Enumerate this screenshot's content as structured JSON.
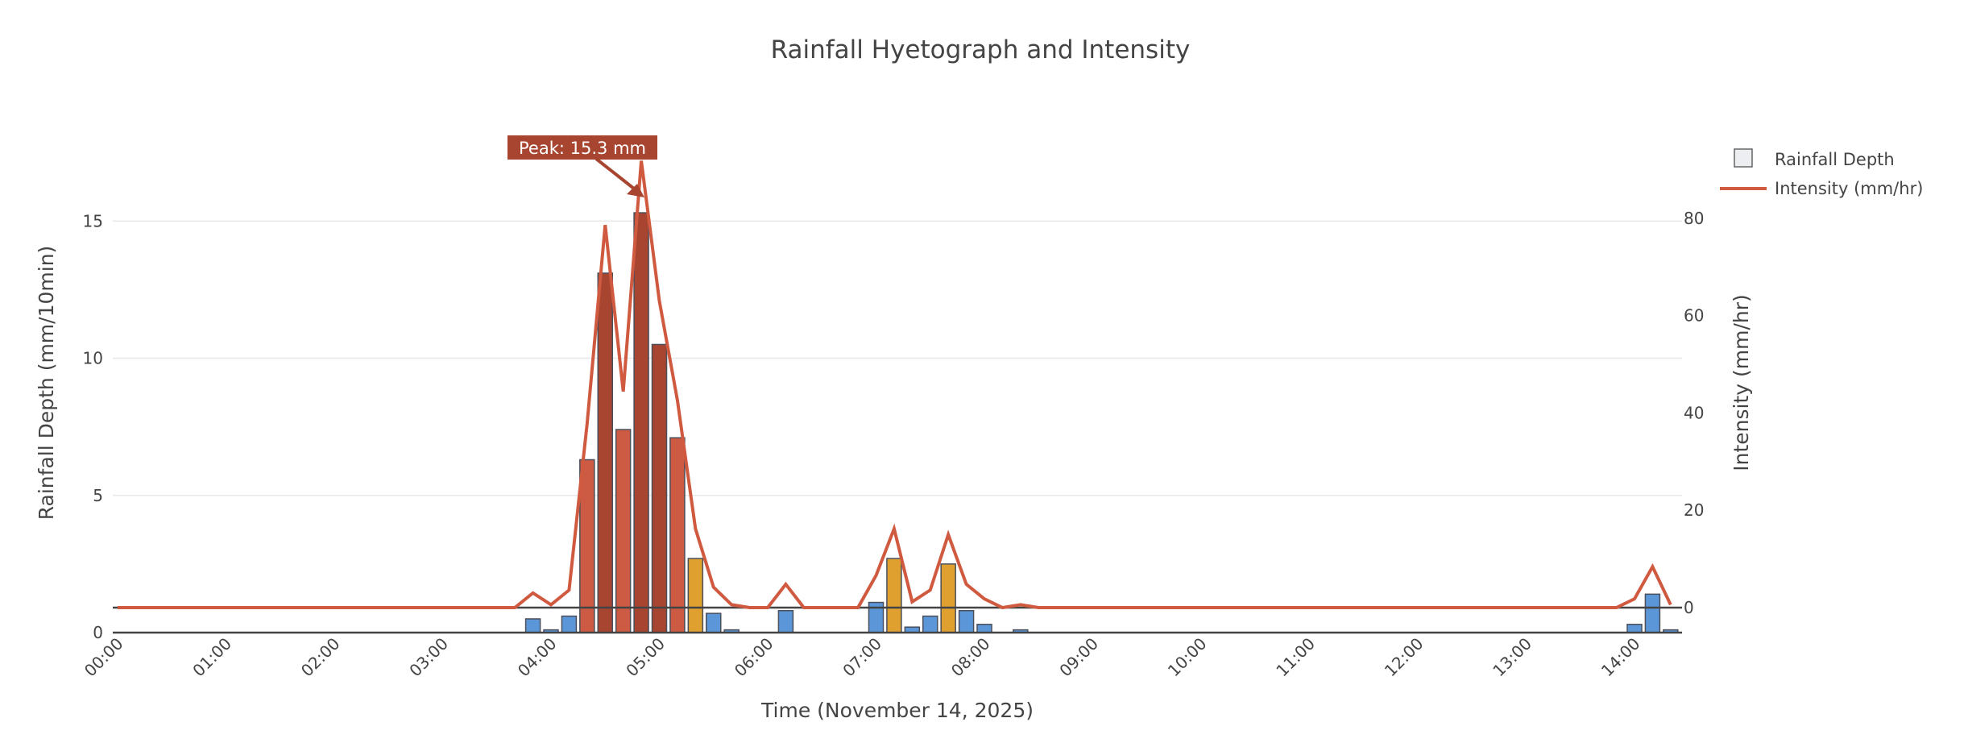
{
  "chart_data": {
    "type": "bar+line",
    "title": "Rainfall Hyetograph and Intensity",
    "xlabel": "Time (November 14, 2025)",
    "ylabel": "Rainfall Depth (mm/10min)",
    "y2label": "Intensity (mm/hr)",
    "x_interval_minutes": 10,
    "x_start": "00:00",
    "x_ticks": [
      "00:00",
      "01:00",
      "02:00",
      "03:00",
      "04:00",
      "05:00",
      "06:00",
      "07:00",
      "08:00",
      "09:00",
      "10:00",
      "11:00",
      "12:00",
      "13:00",
      "14:00"
    ],
    "y_ticks": [
      "0",
      "5",
      "10",
      "15"
    ],
    "y_tick_values": [
      0,
      5,
      10,
      15
    ],
    "y2_ticks": [
      "0",
      "20",
      "40",
      "60",
      "80"
    ],
    "y2_tick_values": [
      0,
      20,
      40,
      60,
      80
    ],
    "grid": true,
    "legend_position": "top-right",
    "series": [
      {
        "name": "Rainfall Depth",
        "type": "bar",
        "axis": "left",
        "values": [
          0,
          0,
          0,
          0,
          0,
          0,
          0,
          0,
          0,
          0,
          0,
          0,
          0,
          0,
          0,
          0,
          0,
          0,
          0,
          0,
          0,
          0,
          0,
          0.5,
          0.1,
          0.6,
          6.3,
          13.1,
          7.4,
          15.3,
          10.5,
          7.1,
          2.7,
          0.7,
          0.1,
          0,
          0,
          0.8,
          0,
          0,
          0,
          0,
          1.1,
          2.7,
          0.2,
          0.6,
          2.5,
          0.8,
          0.3,
          0,
          0.1,
          0,
          0,
          0,
          0,
          0,
          0,
          0,
          0,
          0,
          0,
          0,
          0,
          0,
          0,
          0,
          0,
          0,
          0,
          0,
          0,
          0,
          0,
          0,
          0,
          0,
          0,
          0,
          0,
          0,
          0,
          0,
          0,
          0,
          0.3,
          1.4,
          0.1
        ]
      },
      {
        "name": "Intensity (mm/hr)",
        "type": "line",
        "axis": "right",
        "values": [
          0,
          0,
          0,
          0,
          0,
          0,
          0,
          0,
          0,
          0,
          0,
          0,
          0,
          0,
          0,
          0,
          0,
          0,
          0,
          0,
          0,
          0,
          0,
          3,
          0.6,
          3.6,
          37.8,
          78.6,
          44.4,
          91.8,
          63,
          42.6,
          16.2,
          4.2,
          0.6,
          0,
          0,
          4.8,
          0,
          0,
          0,
          0,
          6.6,
          16.2,
          1.2,
          3.6,
          15,
          4.8,
          1.8,
          0,
          0.6,
          0,
          0,
          0,
          0,
          0,
          0,
          0,
          0,
          0,
          0,
          0,
          0,
          0,
          0,
          0,
          0,
          0,
          0,
          0,
          0,
          0,
          0,
          0,
          0,
          0,
          0,
          0,
          0,
          0,
          0,
          0,
          0,
          0,
          1.8,
          8.4,
          0.6
        ]
      }
    ],
    "color_bins": [
      {
        "max": 2,
        "color": "#5b96d9"
      },
      {
        "max": 5,
        "color": "#e0a030"
      },
      {
        "max": 10,
        "color": "#cd5a42"
      },
      {
        "max": 1000,
        "color": "#a84530"
      }
    ],
    "line_color": "#d05a40",
    "annotation": {
      "text": "Peak: 15.3 mm",
      "time_index": 29,
      "value": 15.3,
      "bg": "#a84530"
    }
  }
}
